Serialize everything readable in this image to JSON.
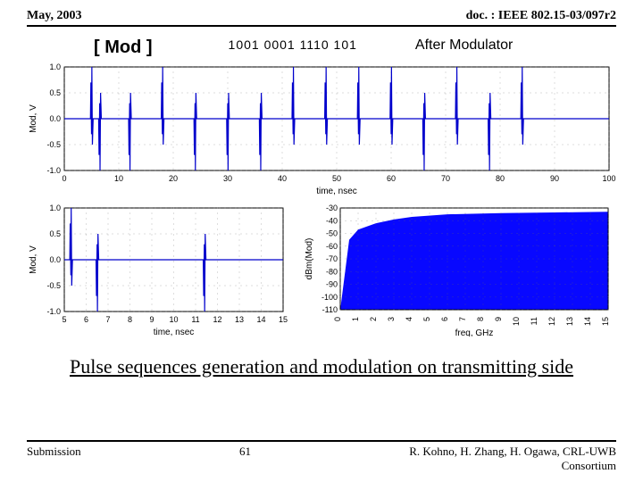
{
  "header": {
    "date": "May, 2003",
    "doc": "doc. : IEEE 802.15-03/097r2"
  },
  "top_labels": {
    "mod": "[ Mod ]",
    "bits": "1001 0001 1110 101",
    "after": "After Modulator"
  },
  "chart_top": {
    "type": "line",
    "ylabel": "Mod, V",
    "xlabel": "time, nsec",
    "xlim": [
      0,
      100
    ],
    "ylim": [
      -1.0,
      1.0
    ],
    "xticks": [
      0,
      10,
      20,
      30,
      40,
      50,
      60,
      70,
      80,
      90,
      100
    ],
    "yticks": [
      -1.0,
      -0.5,
      0.0,
      0.5,
      1.0
    ],
    "pulses": [
      {
        "x": 5,
        "a": 1.0
      },
      {
        "x": 6.5,
        "a": -1.0
      },
      {
        "x": 12,
        "a": -1.0
      },
      {
        "x": 18,
        "a": 1.0
      },
      {
        "x": 24,
        "a": -1.0
      },
      {
        "x": 30,
        "a": -1.0
      },
      {
        "x": 36,
        "a": -1.0
      },
      {
        "x": 42,
        "a": 1.0
      },
      {
        "x": 48,
        "a": 1.0
      },
      {
        "x": 54,
        "a": 1.0
      },
      {
        "x": 60,
        "a": 1.0
      },
      {
        "x": 66,
        "a": -1.0
      },
      {
        "x": 72,
        "a": 1.0
      },
      {
        "x": 78,
        "a": -1.0
      },
      {
        "x": 84,
        "a": 1.0
      }
    ],
    "line_color": "#0000cc",
    "grid_color": "#666",
    "axis_color": "#000",
    "label_fontsize": 10,
    "tick_fontsize": 9
  },
  "chart_bl": {
    "type": "line",
    "ylabel": "Mod, V",
    "xlabel": "time, nsec",
    "xlim": [
      5,
      15
    ],
    "ylim": [
      -1.0,
      1.0
    ],
    "xticks": [
      5,
      6,
      7,
      8,
      9,
      10,
      11,
      12,
      13,
      14,
      15
    ],
    "yticks": [
      -1.0,
      -0.5,
      0.0,
      0.5,
      1.0
    ],
    "pulses": [
      {
        "x": 5.3,
        "a": 1.0
      },
      {
        "x": 6.5,
        "a": -1.0
      },
      {
        "x": 11.4,
        "a": -1.0
      }
    ],
    "line_color": "#0000cc",
    "grid_color": "#666",
    "axis_color": "#000",
    "label_fontsize": 10,
    "tick_fontsize": 9
  },
  "chart_br": {
    "type": "area",
    "ylabel": "dBm(Mod)",
    "xlabel": "freq, GHz",
    "xlim": [
      0,
      15
    ],
    "ylim": [
      -110,
      -30
    ],
    "xticks": [
      0,
      1,
      2,
      3,
      4,
      5,
      6,
      7,
      8,
      9,
      10,
      11,
      12,
      13,
      14,
      15
    ],
    "yticks": [
      -110,
      -100,
      -90,
      -80,
      -70,
      -60,
      -50,
      -40,
      -30
    ],
    "fill_color": "#0808ff",
    "grid_color": "#666",
    "axis_color": "#000",
    "curve": [
      {
        "x": 0,
        "y": -110
      },
      {
        "x": 0.5,
        "y": -55
      },
      {
        "x": 1,
        "y": -47
      },
      {
        "x": 2,
        "y": -42
      },
      {
        "x": 3,
        "y": -39
      },
      {
        "x": 4,
        "y": -37
      },
      {
        "x": 6,
        "y": -35
      },
      {
        "x": 9,
        "y": -34
      },
      {
        "x": 12,
        "y": -33.5
      },
      {
        "x": 15,
        "y": -33
      }
    ],
    "label_fontsize": 10,
    "tick_fontsize": 9
  },
  "caption": "Pulse sequences generation and modulation on transmitting side",
  "footer": {
    "submission": "Submission",
    "page": "61",
    "authors": "R. Kohno, H. Zhang, H. Ogawa, CRL-UWB",
    "org": "Consortium"
  }
}
